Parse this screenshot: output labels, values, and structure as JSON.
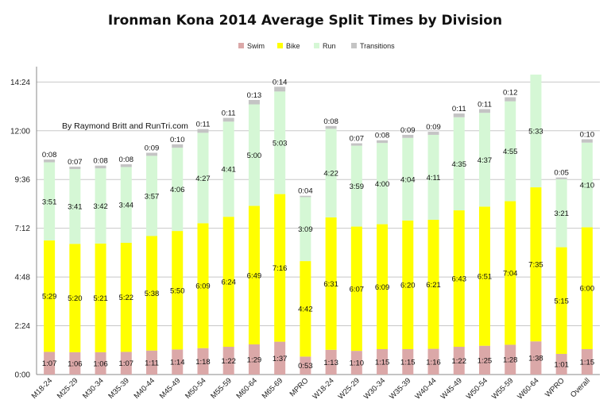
{
  "chart_data": {
    "type": "bar",
    "stacked": true,
    "title": "Ironman Kona 2014 Average Split Times by Division",
    "annotation": "By Raymond Britt and RunTri.com",
    "xlabel": "",
    "ylabel": "",
    "y_unit": "minutes",
    "ylim": [
      0,
      864
    ],
    "y_ticks": [
      0,
      144,
      288,
      432,
      576,
      720,
      864
    ],
    "y_tick_labels": [
      "0:00",
      "2:24",
      "4:48",
      "7:12",
      "9:36",
      "12:00",
      "14:24"
    ],
    "grid": true,
    "legend_position": "top",
    "categories": [
      "M18-24",
      "M25-29",
      "M30-34",
      "M35-39",
      "M40-44",
      "M45-49",
      "M50-54",
      "M55-59",
      "M60-64",
      "M65-69",
      "MPRO",
      "W18-24",
      "W25-29",
      "W30-34",
      "W35-39",
      "W40-44",
      "W45-49",
      "W50-54",
      "W55-59",
      "W60-64",
      "WPRO",
      "Overall"
    ],
    "series": [
      {
        "name": "Swim",
        "color": "#dba8a8",
        "values": [
          67,
          66,
          66,
          67,
          71,
          74,
          78,
          82,
          89,
          97,
          53,
          73,
          70,
          75,
          75,
          76,
          82,
          85,
          88,
          98,
          61,
          75
        ],
        "labels": [
          "1:07",
          "1:06",
          "1:06",
          "1:07",
          "1:11",
          "1:14",
          "1:18",
          "1:22",
          "1:29",
          "1:37",
          "0:53",
          "1:13",
          "1:10",
          "1:15",
          "1:15",
          "1:16",
          "1:22",
          "1:25",
          "1:28",
          "1:38",
          "1:01",
          "1:15"
        ]
      },
      {
        "name": "Bike",
        "color": "#ffff00",
        "values": [
          329,
          320,
          321,
          322,
          338,
          350,
          369,
          384,
          409,
          436,
          282,
          391,
          367,
          369,
          380,
          381,
          403,
          411,
          424,
          455,
          315,
          360
        ],
        "labels": [
          "5:29",
          "5:20",
          "5:21",
          "5:22",
          "5:38",
          "5:50",
          "6:09",
          "6:24",
          "6:49",
          "7:16",
          "4:42",
          "6:31",
          "6:07",
          "6:09",
          "6:20",
          "6:21",
          "6:43",
          "6:51",
          "7:04",
          "7:35",
          "5:15",
          "6:00"
        ]
      },
      {
        "name": "Run",
        "color": "#d5f7d5",
        "values": [
          231,
          221,
          222,
          224,
          237,
          246,
          267,
          281,
          300,
          303,
          189,
          262,
          239,
          240,
          244,
          251,
          275,
          277,
          295,
          333,
          201,
          250
        ],
        "labels": [
          "3:51",
          "3:41",
          "3:42",
          "3:44",
          "3:57",
          "4:06",
          "4:27",
          "4:41",
          "5:00",
          "5:03",
          "3:09",
          "4:22",
          "3:59",
          "4:00",
          "4:04",
          "4:11",
          "4:35",
          "4:37",
          "4:55",
          "5:33",
          "3:21",
          "4:10"
        ]
      },
      {
        "name": "Transitions",
        "color": "#c4c4c4",
        "values": [
          8,
          7,
          8,
          8,
          9,
          10,
          11,
          11,
          13,
          14,
          4,
          8,
          7,
          8,
          9,
          9,
          11,
          11,
          12,
          0,
          5,
          10
        ],
        "labels": [
          "0:08",
          "0:07",
          "0:08",
          "0:08",
          "0:09",
          "0:10",
          "0:11",
          "0:11",
          "0:13",
          "0:14",
          "0:04",
          "0:08",
          "0:07",
          "0:08",
          "0:09",
          "0:09",
          "0:11",
          "0:11",
          "0:12",
          "",
          "0:05",
          "0:10"
        ]
      }
    ]
  }
}
